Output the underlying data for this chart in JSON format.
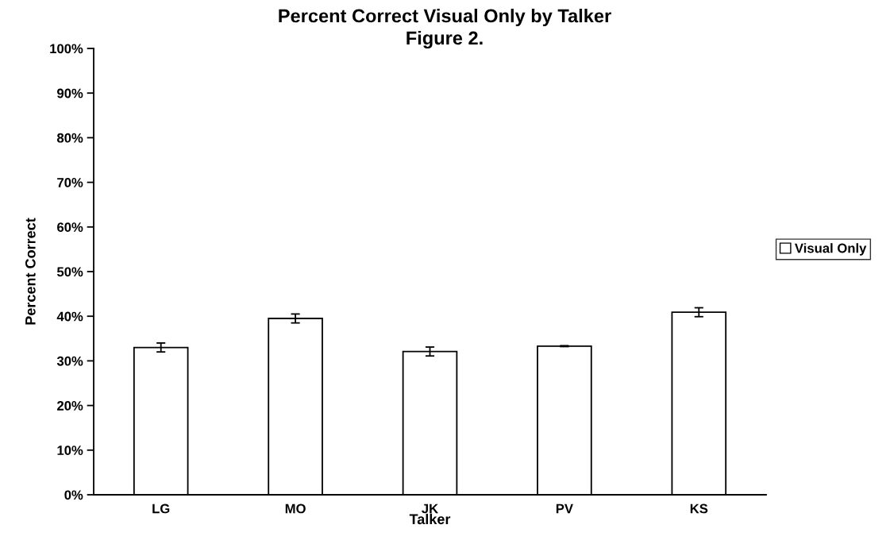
{
  "chart_data": {
    "type": "bar",
    "title": "Percent Correct Visual Only by Talker",
    "subtitle": "Figure 2.",
    "xlabel": "Talker",
    "ylabel": "Percent Correct",
    "categories": [
      "LG",
      "MO",
      "JK",
      "PV",
      "KS"
    ],
    "series": [
      {
        "name": "Visual Only",
        "color": "#ffffff",
        "values": [
          33.0,
          39.5,
          32.1,
          33.3,
          40.9
        ],
        "errors": [
          1.0,
          1.0,
          1.0,
          0.1,
          1.0
        ]
      }
    ],
    "ylim": [
      0,
      100
    ],
    "yticks": [
      {
        "value": 0,
        "label": "0%"
      },
      {
        "value": 10,
        "label": "10%"
      },
      {
        "value": 20,
        "label": "20%"
      },
      {
        "value": 30,
        "label": "30%"
      },
      {
        "value": 40,
        "label": "40%"
      },
      {
        "value": 50,
        "label": "50%"
      },
      {
        "value": 60,
        "label": "60%"
      },
      {
        "value": 70,
        "label": "70%"
      },
      {
        "value": 80,
        "label": "80%"
      },
      {
        "value": 90,
        "label": "90%"
      },
      {
        "value": 100,
        "label": "100%"
      }
    ],
    "grid": false,
    "legend": "right"
  }
}
